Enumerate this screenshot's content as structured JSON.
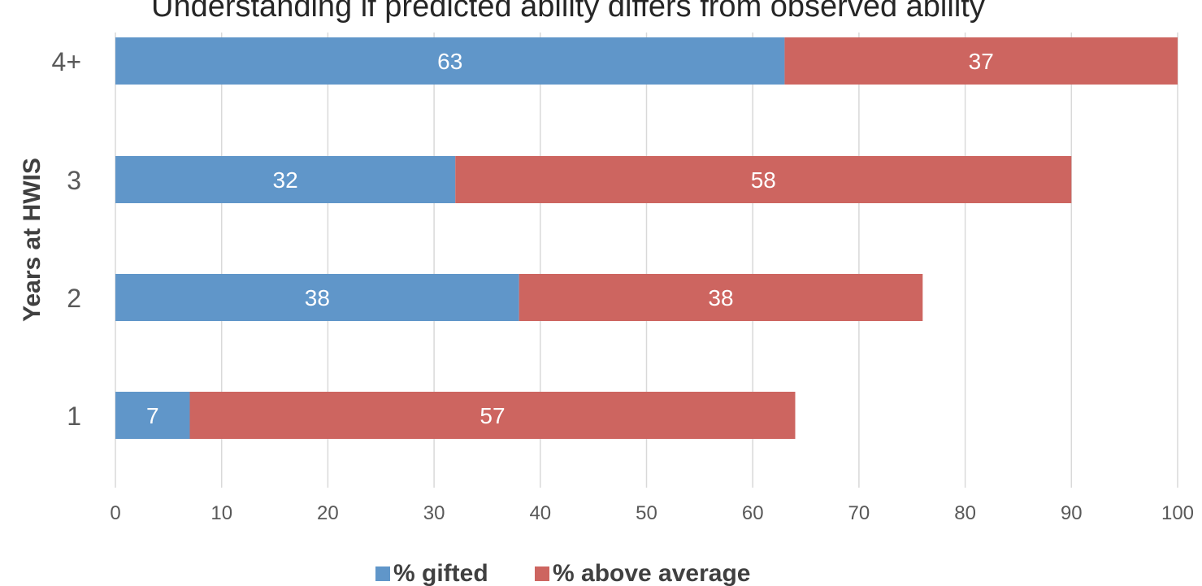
{
  "chart_data": {
    "type": "bar",
    "orientation": "horizontal",
    "stacked": true,
    "title": "Understanding if predicted ability differs from observed ability",
    "xlabel": "",
    "ylabel": "Years at HWIS",
    "categories": [
      "1",
      "2",
      "3",
      "4+"
    ],
    "series": [
      {
        "name": "% gifted",
        "values": [
          7,
          38,
          32,
          63
        ],
        "color": "#6096c9"
      },
      {
        "name": "% above average",
        "values": [
          57,
          38,
          58,
          37
        ],
        "color": "#cd6560"
      }
    ],
    "xlim": [
      0,
      100
    ],
    "xticks": [
      "0",
      "10",
      "20",
      "30",
      "40",
      "50",
      "60",
      "70",
      "80",
      "90",
      "100"
    ],
    "grid": "vertical",
    "legend": "bottom-center",
    "data_labels": true,
    "colors": {
      "grid": "#d9d9d9",
      "tick_text": "#595959",
      "axis_title": "#404040",
      "title": "#262626",
      "label_text": "#ffffff"
    }
  }
}
